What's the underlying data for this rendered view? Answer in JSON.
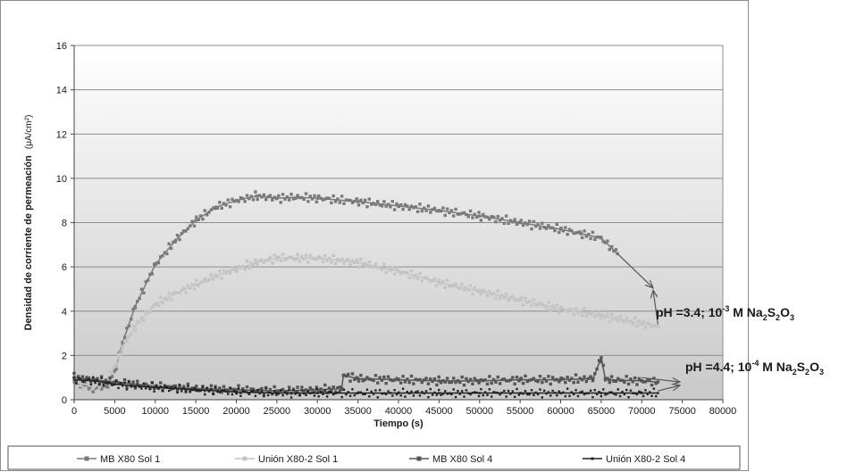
{
  "chart_data": {
    "type": "line",
    "title": "",
    "xlabel": "Tiempo (s)",
    "ylabel": "Densidad de corriente de permeación",
    "ylabel_unit": "(μA/cm²)",
    "xlim": [
      0,
      80000
    ],
    "ylim": [
      0,
      16
    ],
    "x_ticks": [
      0,
      5000,
      10000,
      15000,
      20000,
      25000,
      30000,
      35000,
      40000,
      45000,
      50000,
      55000,
      60000,
      65000,
      70000,
      75000,
      80000
    ],
    "y_ticks": [
      0,
      2,
      4,
      6,
      8,
      10,
      12,
      14,
      16
    ],
    "grid": true,
    "plot_background": "gradient-gray",
    "legend_position": "bottom",
    "series": [
      {
        "name": "MB X80 Sol 1",
        "color": "#7a7a7a",
        "x": [
          0,
          2500,
          4000,
          5000,
          6000,
          7500,
          10000,
          12500,
          15000,
          17500,
          20000,
          22500,
          25000,
          27500,
          30000,
          35000,
          40000,
          45000,
          50000,
          55000,
          60000,
          62500,
          65000,
          67000
        ],
        "y": [
          0.8,
          0.5,
          0.6,
          1.3,
          2.6,
          4.2,
          6.1,
          7.2,
          8.1,
          8.7,
          9.0,
          9.2,
          9.1,
          9.15,
          9.1,
          8.95,
          8.75,
          8.55,
          8.3,
          8.0,
          7.7,
          7.5,
          7.3,
          6.6
        ]
      },
      {
        "name": "Unión X80-2 Sol 1",
        "color": "#c4c4c4",
        "x": [
          0,
          2500,
          4000,
          5000,
          6000,
          7500,
          10000,
          12500,
          15000,
          17500,
          20000,
          22500,
          25000,
          27500,
          30000,
          32500,
          35000,
          40000,
          45000,
          50000,
          55000,
          60000,
          65000,
          70000,
          72000
        ],
        "y": [
          0.8,
          0.6,
          0.8,
          1.5,
          2.4,
          3.3,
          4.3,
          4.8,
          5.2,
          5.6,
          5.9,
          6.2,
          6.4,
          6.4,
          6.4,
          6.3,
          6.2,
          5.8,
          5.3,
          4.9,
          4.5,
          4.1,
          3.8,
          3.45,
          3.3
        ]
      },
      {
        "name": "MB X80 Sol 4",
        "color": "#555555",
        "x": [
          0,
          2500,
          5000,
          10000,
          15000,
          20000,
          25000,
          30000,
          33000,
          33200,
          35000,
          40000,
          45000,
          50000,
          55000,
          60000,
          64000,
          65000,
          65500,
          66000,
          70000,
          72000
        ],
        "y": [
          1.0,
          0.9,
          0.8,
          0.6,
          0.5,
          0.45,
          0.4,
          0.45,
          0.5,
          1.1,
          0.95,
          0.9,
          0.85,
          0.85,
          0.9,
          0.9,
          0.95,
          1.9,
          0.95,
          0.9,
          0.85,
          0.8
        ]
      },
      {
        "name": "Unión X80-2 Sol 4",
        "color": "#222222",
        "x": [
          0,
          2500,
          5000,
          10000,
          15000,
          20000,
          25000,
          30000,
          35000,
          40000,
          45000,
          50000,
          55000,
          60000,
          65000,
          70000,
          72000
        ],
        "y": [
          0.9,
          0.85,
          0.7,
          0.55,
          0.45,
          0.35,
          0.3,
          0.3,
          0.3,
          0.3,
          0.3,
          0.3,
          0.3,
          0.3,
          0.3,
          0.3,
          0.3
        ]
      }
    ],
    "annotations": [
      {
        "text_parts": [
          "pH =3.4; 10",
          "-3",
          " M Na",
          "2",
          "S",
          "2",
          "O",
          "3"
        ],
        "points_to": [
          "MB X80 Sol 1",
          "Unión X80-2 Sol 1"
        ]
      },
      {
        "text_parts": [
          "pH =4.4; 10",
          "-4",
          " M Na",
          "2",
          "S",
          "2",
          "O",
          "3"
        ],
        "points_to": [
          "MB X80 Sol 4",
          "Unión X80-2 Sol 4"
        ]
      }
    ]
  }
}
